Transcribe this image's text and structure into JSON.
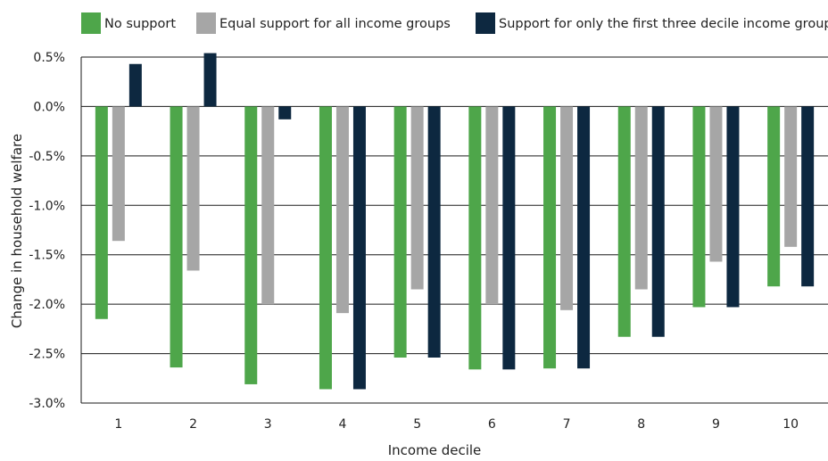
{
  "chart_data": {
    "type": "bar",
    "title": "",
    "xlabel": "Income decile",
    "ylabel": "Change in household welfare",
    "categories": [
      "1",
      "2",
      "3",
      "4",
      "5",
      "6",
      "7",
      "8",
      "9",
      "10"
    ],
    "ylim": [
      -3.0,
      0.5
    ],
    "yticks": [
      "0.5%",
      "0.0%",
      "-0.5%",
      "-1.0%",
      "-1.5%",
      "-2.0%",
      "-2.5%",
      "-3.0%"
    ],
    "ytick_values": [
      0.5,
      0.0,
      -0.5,
      -1.0,
      -1.5,
      -2.0,
      -2.5,
      -3.0
    ],
    "grid": true,
    "legend_position": "top",
    "series": [
      {
        "name": "No support",
        "color": "#4ea64a",
        "values": [
          -2.15,
          -2.64,
          -2.81,
          -2.86,
          -2.54,
          -2.66,
          -2.65,
          -2.33,
          -2.03,
          -1.82
        ]
      },
      {
        "name": "Equal support for all income groups",
        "color": "#a6a6a6",
        "values": [
          -1.36,
          -1.66,
          -2.0,
          -2.09,
          -1.85,
          -2.0,
          -2.06,
          -1.85,
          -1.57,
          -1.42
        ]
      },
      {
        "name": "Support for only the first three decile income groups",
        "color": "#0d2840",
        "values": [
          0.43,
          0.54,
          -0.13,
          -2.86,
          -2.54,
          -2.66,
          -2.65,
          -2.33,
          -2.03,
          -1.82
        ]
      }
    ]
  }
}
